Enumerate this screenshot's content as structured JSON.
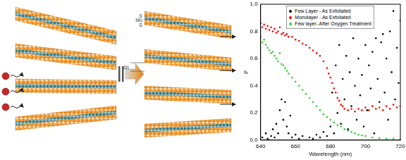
{
  "diagram": {
    "layer_labels": [
      "S",
      "Mo",
      "S"
    ],
    "gap_label": "Δh"
  },
  "chart_data": {
    "type": "scatter",
    "x_label": "Wavelength (nm)",
    "y_label": "ρ",
    "xlim": [
      640,
      720
    ],
    "xticks": [
      640,
      660,
      680,
      700,
      720
    ],
    "ylim": [
      0,
      1
    ],
    "yticks": [
      {
        "value": 0,
        "label": "0.0"
      },
      0.2,
      0.4,
      0.6,
      0.8,
      {
        "value": 1,
        "label": "1.0"
      }
    ],
    "grid": false,
    "legend": "upper center",
    "marker": "point",
    "series": [
      {
        "name": "Few Layer - As Exfoliated",
        "color": "#000000",
        "x": [
          640,
          641,
          642,
          643,
          644,
          645,
          646,
          647,
          648,
          649,
          650,
          651,
          652,
          653,
          654,
          655,
          656,
          657,
          658,
          660,
          662,
          664,
          666,
          668,
          670,
          672,
          674,
          676,
          678,
          680,
          681,
          682,
          683,
          684,
          685,
          686,
          687,
          688,
          689,
          690,
          691,
          692,
          693,
          694,
          695,
          696,
          697,
          698,
          699,
          700,
          701,
          702,
          703,
          704,
          705,
          706,
          707,
          708,
          709,
          710,
          711,
          712,
          713,
          714,
          715,
          716,
          717,
          718,
          719,
          720
        ],
        "values": [
          0.0,
          0.02,
          0.0,
          0.05,
          0.01,
          0.0,
          0.03,
          0.08,
          0.02,
          0.12,
          0.05,
          0.22,
          0.3,
          0.15,
          0.28,
          0.1,
          0.05,
          0.18,
          0.02,
          0.04,
          0.01,
          0.03,
          0.0,
          0.02,
          0.01,
          0.04,
          0.02,
          0.06,
          0.03,
          0.1,
          0.35,
          0.05,
          0.55,
          0.2,
          0.7,
          0.12,
          0.45,
          0.3,
          0.62,
          0.08,
          0.5,
          0.25,
          0.75,
          0.4,
          0.15,
          0.6,
          0.33,
          0.48,
          0.1,
          0.7,
          0.22,
          0.55,
          0.38,
          0.65,
          0.05,
          0.75,
          0.45,
          0.28,
          0.72,
          0.78,
          0.35,
          0.6,
          0.15,
          0.8,
          0.5,
          0.95,
          0.3,
          0.68,
          0.42,
          0.88
        ]
      },
      {
        "name": "Monolayer - As Exfoliated",
        "color": "#ff0000",
        "x": [
          640,
          641,
          642,
          643,
          644,
          645,
          646,
          647,
          648,
          649,
          650,
          651,
          652,
          653,
          654,
          655,
          656,
          658,
          660,
          662,
          664,
          666,
          668,
          670,
          672,
          674,
          676,
          678,
          679,
          680,
          681,
          682,
          683,
          684,
          685,
          686,
          687,
          688,
          690,
          692,
          694,
          696,
          698,
          700,
          702,
          704,
          706,
          708,
          710,
          712,
          714,
          716,
          718,
          720
        ],
        "values": [
          0.86,
          0.83,
          0.85,
          0.82,
          0.84,
          0.81,
          0.83,
          0.8,
          0.82,
          0.79,
          0.8,
          0.83,
          0.78,
          0.79,
          0.77,
          0.78,
          0.76,
          0.76,
          0.74,
          0.73,
          0.71,
          0.7,
          0.68,
          0.66,
          0.64,
          0.62,
          0.58,
          0.53,
          0.49,
          0.46,
          0.42,
          0.38,
          0.35,
          0.31,
          0.29,
          0.26,
          0.25,
          0.23,
          0.22,
          0.23,
          0.21,
          0.23,
          0.22,
          0.24,
          0.22,
          0.25,
          0.23,
          0.24,
          0.22,
          0.25,
          0.23,
          0.26,
          0.24,
          0.25
        ]
      },
      {
        "name": "Few layer- After Oxygen Treatment",
        "color": "#33cc33",
        "x": [
          640,
          641,
          642,
          643,
          644,
          645,
          646,
          647,
          648,
          649,
          650,
          651,
          652,
          653,
          654,
          655,
          656,
          658,
          660,
          662,
          664,
          666,
          668,
          670,
          672,
          674,
          676,
          678,
          680,
          682,
          684,
          686,
          688,
          690,
          692,
          694,
          696,
          698,
          700,
          704,
          708,
          712,
          716,
          720
        ],
        "values": [
          0.76,
          0.72,
          0.74,
          0.7,
          0.68,
          0.66,
          0.64,
          0.65,
          0.62,
          0.6,
          0.58,
          0.64,
          0.56,
          0.55,
          0.53,
          0.51,
          0.49,
          0.46,
          0.43,
          0.4,
          0.37,
          0.34,
          0.31,
          0.28,
          0.25,
          0.22,
          0.19,
          0.17,
          0.15,
          0.13,
          0.11,
          0.1,
          0.08,
          0.07,
          0.06,
          0.05,
          0.04,
          0.035,
          0.03,
          0.02,
          0.015,
          0.01,
          0.01,
          0.005
        ]
      }
    ]
  }
}
